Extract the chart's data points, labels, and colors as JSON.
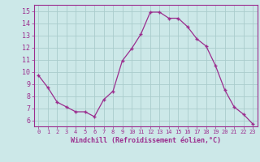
{
  "x": [
    0,
    1,
    2,
    3,
    4,
    5,
    6,
    7,
    8,
    9,
    10,
    11,
    12,
    13,
    14,
    15,
    16,
    17,
    18,
    19,
    20,
    21,
    22,
    23
  ],
  "y": [
    9.7,
    8.7,
    7.5,
    7.1,
    6.7,
    6.7,
    6.3,
    7.7,
    8.4,
    10.9,
    11.9,
    13.1,
    14.9,
    14.9,
    14.4,
    14.4,
    13.7,
    12.7,
    12.1,
    10.5,
    8.5,
    7.1,
    6.5,
    5.7
  ],
  "line_color": "#9b2d8e",
  "marker": "+",
  "marker_size": 3,
  "bg_color": "#cce8e8",
  "grid_color": "#aacccc",
  "xlabel": "Windchill (Refroidissement éolien,°C)",
  "xlabel_color": "#9b2d8e",
  "tick_color": "#9b2d8e",
  "ylim": [
    5.5,
    15.5
  ],
  "xlim": [
    -0.5,
    23.5
  ],
  "yticks": [
    6,
    7,
    8,
    9,
    10,
    11,
    12,
    13,
    14,
    15
  ],
  "xticks": [
    0,
    1,
    2,
    3,
    4,
    5,
    6,
    7,
    8,
    9,
    10,
    11,
    12,
    13,
    14,
    15,
    16,
    17,
    18,
    19,
    20,
    21,
    22,
    23
  ]
}
